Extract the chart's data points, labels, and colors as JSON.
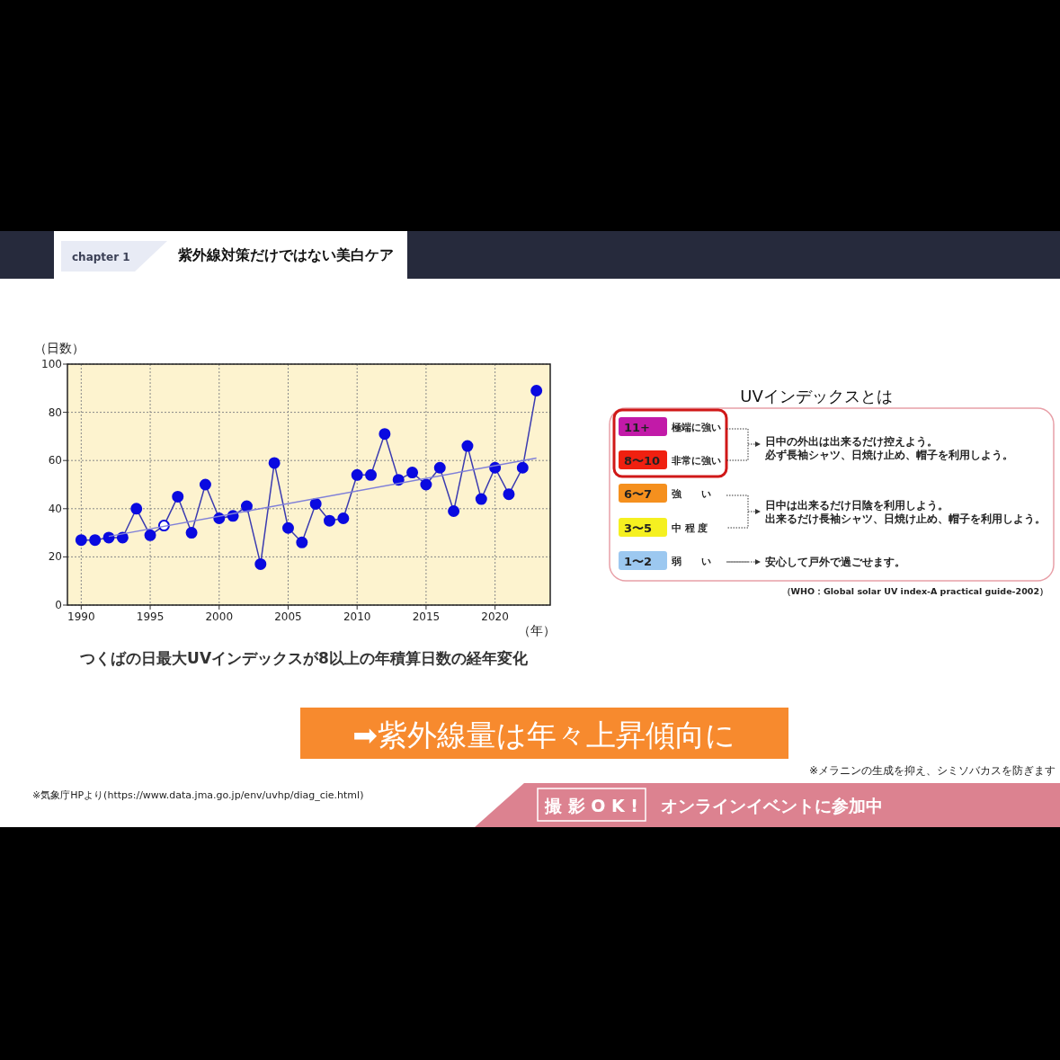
{
  "chart_data": [
    {
      "type": "line",
      "title": "つくばの日最大UVインデックスが8以上の年積算日数の経年変化",
      "xlabel": "（年）",
      "ylabel": "（日数）",
      "x": [
        1990,
        1991,
        1992,
        1993,
        1994,
        1995,
        1996,
        1997,
        1998,
        1999,
        2000,
        2001,
        2002,
        2003,
        2004,
        2005,
        2006,
        2007,
        2008,
        2009,
        2010,
        2011,
        2012,
        2013,
        2014,
        2015,
        2016,
        2017,
        2018,
        2019,
        2020,
        2021,
        2022,
        2023
      ],
      "series": [
        {
          "color": "#3b3bb0",
          "values": [
            27,
            27,
            28,
            28,
            40,
            29,
            33,
            45,
            30,
            50,
            36,
            37,
            41,
            17,
            59,
            32,
            26,
            42,
            35,
            36,
            54,
            54,
            71,
            52,
            55,
            50,
            57,
            39,
            66,
            44,
            57,
            46,
            57,
            89
          ],
          "colors": [
            "#0a0ae0",
            "#0a0ae0",
            "#0a0ae0",
            "#0a0ae0",
            "#0a0ae0",
            "#0a0ae0",
            "#ffffff",
            "#0a0ae0",
            "#0a0ae0",
            "#0a0ae0",
            "#0a0ae0",
            "#0a0ae0",
            "#0a0ae0",
            "#0a0ae0",
            "#0a0ae0",
            "#0a0ae0",
            "#0a0ae0",
            "#0a0ae0",
            "#0a0ae0",
            "#0a0ae0",
            "#0a0ae0",
            "#0a0ae0",
            "#0a0ae0",
            "#0a0ae0",
            "#0a0ae0",
            "#0a0ae0",
            "#0a0ae0",
            "#0a0ae0",
            "#0a0ae0",
            "#0a0ae0",
            "#0a0ae0",
            "#0a0ae0",
            "#0a0ae0",
            "#0a0ae0"
          ]
        },
        {
          "type": "line",
          "color": "#8080d8",
          "x": [
            1992,
            2023
          ],
          "values": [
            28.5,
            61
          ],
          "marker": "none"
        }
      ],
      "xlim": [
        1989,
        2024
      ],
      "ylim": [
        0,
        100
      ],
      "xticks": [
        1990,
        1995,
        2000,
        2005,
        2010,
        2015,
        2020
      ],
      "yticks": [
        0,
        20,
        40,
        60,
        80,
        100
      ],
      "grid": true,
      "marker": "circle",
      "line_style": "solid",
      "annotations": [
        "chapter 1",
        "紫外線対策だけではない美白ケア",
        "➡紫外線量は年々上昇傾向に",
        "※メラニンの生成を抑え、シミソバカスを防ぎます",
        "※気象庁HPより(https://www.data.jma.go.jp/env/uvhp/diag_cie.html)",
        "撮 影 O K !",
        "オンラインイベントに参加中"
      ]
    },
    {
      "type": "other",
      "title": "UVインデックスとは",
      "categories": [
        "11+",
        "8〜10",
        "6〜7",
        "3〜5",
        "1〜2"
      ],
      "colors": [
        "#c21aa8",
        "#f02010",
        "#f5901e",
        "#f5f020",
        "#9cc8f0"
      ],
      "annotations": [
        "極端に強い",
        "非常に強い",
        "強　　い",
        "中 程 度",
        "弱　　い",
        "日中の外出は出来るだけ控えよう。",
        "必ず長袖シャツ、日焼け止め、帽子を利用しよう。",
        "日中は出来るだけ日陰を利用しよう。",
        "出来るだけ長袖シャツ、日焼け止め、帽子を利用しよう。",
        "安心して戸外で過ごせます。",
        "（WHO：Global solar UV index-A practical guide-2002）"
      ]
    }
  ]
}
